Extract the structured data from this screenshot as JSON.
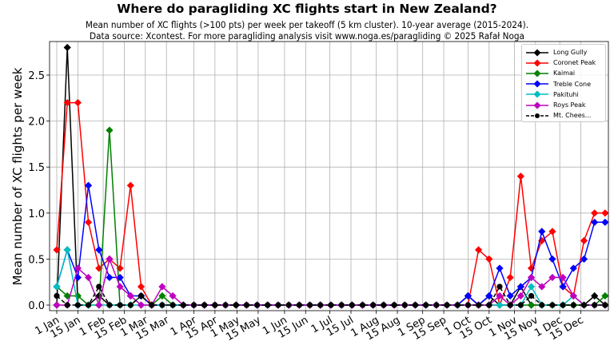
{
  "header": {
    "title": "Where do paragliding XC flights start in New Zealand?",
    "subtitle_line1": "Mean number of XC flights (>100 pts) per week per takeoff (5 km cluster). 10-year average (2015-2024).",
    "subtitle_line2": "Data source: Xcontest. For more paragliding analysis visit www.noga.es/paragliding © 2025 Rafał Noga"
  },
  "chart_data": {
    "type": "line",
    "title": "Where do paragliding XC flights start in New Zealand?",
    "xlabel": "",
    "ylabel": "Mean number of XC flights per week",
    "ylim": [
      -0.03,
      2.85
    ],
    "grid": true,
    "legend_position": "upper right",
    "yticks": [
      0.0,
      0.5,
      1.0,
      1.5,
      2.0,
      2.5
    ],
    "ytick_labels": [
      "0.0",
      "0.5",
      "1.0",
      "1.5",
      "2.0",
      "2.5"
    ],
    "xtick_labels": [
      "1 Jan",
      "15 Jan",
      "1 Feb",
      "15 Feb",
      "1 Mar",
      "15 Mar",
      "1 Apr",
      "15 Apr",
      "1 May",
      "15 May",
      "1 Jun",
      "15 Jun",
      "1 Jul",
      "15 Jul",
      "1 Aug",
      "15 Aug",
      "1 Sep",
      "15 Sep",
      "1 Oct",
      "15 Oct",
      "1 Nov",
      "15 Nov",
      "1 Dec",
      "15 Dec"
    ],
    "xtick_weeks": [
      0.0,
      2.0,
      4.4,
      6.4,
      8.4,
      10.4,
      13.0,
      15.0,
      17.1,
      19.1,
      21.6,
      23.6,
      25.9,
      27.9,
      30.3,
      32.3,
      34.7,
      36.7,
      39.0,
      41.0,
      43.4,
      45.4,
      47.7,
      49.7
    ],
    "x": [
      0,
      1,
      2,
      3,
      4,
      5,
      6,
      7,
      8,
      9,
      10,
      11,
      12,
      13,
      14,
      15,
      16,
      17,
      18,
      19,
      20,
      21,
      22,
      23,
      24,
      25,
      26,
      27,
      28,
      29,
      30,
      31,
      32,
      33,
      34,
      35,
      36,
      37,
      38,
      39,
      40,
      41,
      42,
      43,
      44,
      45,
      46,
      47,
      48,
      49,
      50,
      51,
      52
    ],
    "series": [
      {
        "name": "Long Gully",
        "color": "#000000",
        "marker": "diamond",
        "dashed": false,
        "values": [
          0.0,
          2.8,
          0.0,
          0.0,
          0.1,
          0.0,
          0.0,
          0.0,
          0.1,
          0.0,
          0.0,
          0.0,
          0.0,
          0.0,
          0.0,
          0.0,
          0.0,
          0.0,
          0.0,
          0.0,
          0.0,
          0.0,
          0.0,
          0.0,
          0.0,
          0.0,
          0.0,
          0.0,
          0.0,
          0.0,
          0.0,
          0.0,
          0.0,
          0.0,
          0.0,
          0.0,
          0.0,
          0.0,
          0.0,
          0.1,
          0.0,
          0.1,
          0.0,
          0.0,
          0.2,
          0.0,
          0.0,
          0.0,
          0.0,
          0.0,
          0.0,
          0.1,
          0.0
        ]
      },
      {
        "name": "Coronet Peak",
        "color": "#ff0000",
        "marker": "diamond",
        "dashed": false,
        "values": [
          0.6,
          2.2,
          2.2,
          0.9,
          0.4,
          0.5,
          0.4,
          1.3,
          0.2,
          0.0,
          0.0,
          0.0,
          0.0,
          0.0,
          0.0,
          0.0,
          0.0,
          0.0,
          0.0,
          0.0,
          0.0,
          0.0,
          0.0,
          0.0,
          0.0,
          0.0,
          0.0,
          0.0,
          0.0,
          0.0,
          0.0,
          0.0,
          0.0,
          0.0,
          0.0,
          0.0,
          0.0,
          0.0,
          0.0,
          0.0,
          0.6,
          0.5,
          0.0,
          0.3,
          1.4,
          0.4,
          0.7,
          0.8,
          0.2,
          0.1,
          0.7,
          1.0,
          1.0
        ]
      },
      {
        "name": "Kaimai",
        "color": "#008000",
        "marker": "diamond",
        "dashed": false,
        "values": [
          0.2,
          0.1,
          0.1,
          0.0,
          0.0,
          1.9,
          0.0,
          0.0,
          0.1,
          0.0,
          0.1,
          0.0,
          0.0,
          0.0,
          0.0,
          0.0,
          0.0,
          0.0,
          0.0,
          0.0,
          0.0,
          0.0,
          0.0,
          0.0,
          0.0,
          0.0,
          0.0,
          0.0,
          0.0,
          0.0,
          0.0,
          0.0,
          0.0,
          0.0,
          0.0,
          0.0,
          0.0,
          0.0,
          0.0,
          0.0,
          0.0,
          0.0,
          0.0,
          0.0,
          0.0,
          0.0,
          0.0,
          0.0,
          0.0,
          0.0,
          0.0,
          0.0,
          0.1
        ]
      },
      {
        "name": "Treble Cone",
        "color": "#0000ff",
        "marker": "diamond",
        "dashed": false,
        "values": [
          0.2,
          0.6,
          0.3,
          1.3,
          0.6,
          0.3,
          0.3,
          0.1,
          0.1,
          0.0,
          0.0,
          0.0,
          0.0,
          0.0,
          0.0,
          0.0,
          0.0,
          0.0,
          0.0,
          0.0,
          0.0,
          0.0,
          0.0,
          0.0,
          0.0,
          0.0,
          0.0,
          0.0,
          0.0,
          0.0,
          0.0,
          0.0,
          0.0,
          0.0,
          0.0,
          0.0,
          0.0,
          0.0,
          0.0,
          0.1,
          0.0,
          0.1,
          0.4,
          0.1,
          0.2,
          0.3,
          0.8,
          0.5,
          0.2,
          0.4,
          0.5,
          0.9,
          0.9
        ]
      },
      {
        "name": "Pakituhi",
        "color": "#00bfbf",
        "marker": "diamond",
        "dashed": false,
        "values": [
          0.2,
          0.6,
          0.0,
          0.0,
          0.0,
          0.0,
          0.0,
          0.0,
          0.0,
          0.0,
          0.0,
          0.0,
          0.0,
          0.0,
          0.0,
          0.0,
          0.0,
          0.0,
          0.0,
          0.0,
          0.0,
          0.0,
          0.0,
          0.0,
          0.0,
          0.0,
          0.0,
          0.0,
          0.0,
          0.0,
          0.0,
          0.0,
          0.0,
          0.0,
          0.0,
          0.0,
          0.0,
          0.0,
          0.0,
          0.0,
          0.0,
          0.0,
          0.0,
          0.0,
          0.0,
          0.2,
          0.0,
          0.0,
          0.0,
          0.1,
          0.0,
          0.0,
          0.0
        ]
      },
      {
        "name": "Roys Peak",
        "color": "#bf00bf",
        "marker": "diamond",
        "dashed": false,
        "values": [
          0.0,
          0.0,
          0.4,
          0.3,
          0.0,
          0.5,
          0.2,
          0.1,
          0.0,
          0.0,
          0.2,
          0.1,
          0.0,
          0.0,
          0.0,
          0.0,
          0.0,
          0.0,
          0.0,
          0.0,
          0.0,
          0.0,
          0.0,
          0.0,
          0.0,
          0.0,
          0.0,
          0.0,
          0.0,
          0.0,
          0.0,
          0.0,
          0.0,
          0.0,
          0.0,
          0.0,
          0.0,
          0.0,
          0.0,
          0.0,
          0.0,
          0.0,
          0.1,
          0.0,
          0.1,
          0.3,
          0.2,
          0.3,
          0.3,
          0.1,
          0.0,
          0.0,
          0.0
        ]
      },
      {
        "name": "Mt. Chees...",
        "color": "#000000",
        "marker": "circle",
        "dashed": true,
        "values": [
          0.1,
          0.0,
          0.0,
          0.0,
          0.2,
          0.0,
          0.0,
          0.0,
          0.1,
          0.0,
          0.0,
          0.0,
          0.0,
          0.0,
          0.0,
          0.0,
          0.0,
          0.0,
          0.0,
          0.0,
          0.0,
          0.0,
          0.0,
          0.0,
          0.0,
          0.0,
          0.0,
          0.0,
          0.0,
          0.0,
          0.0,
          0.0,
          0.0,
          0.0,
          0.0,
          0.0,
          0.0,
          0.0,
          0.0,
          0.0,
          0.0,
          0.0,
          0.2,
          0.0,
          0.0,
          0.1,
          0.0,
          0.0,
          0.0,
          0.0,
          0.0,
          0.0,
          0.0
        ]
      }
    ]
  }
}
